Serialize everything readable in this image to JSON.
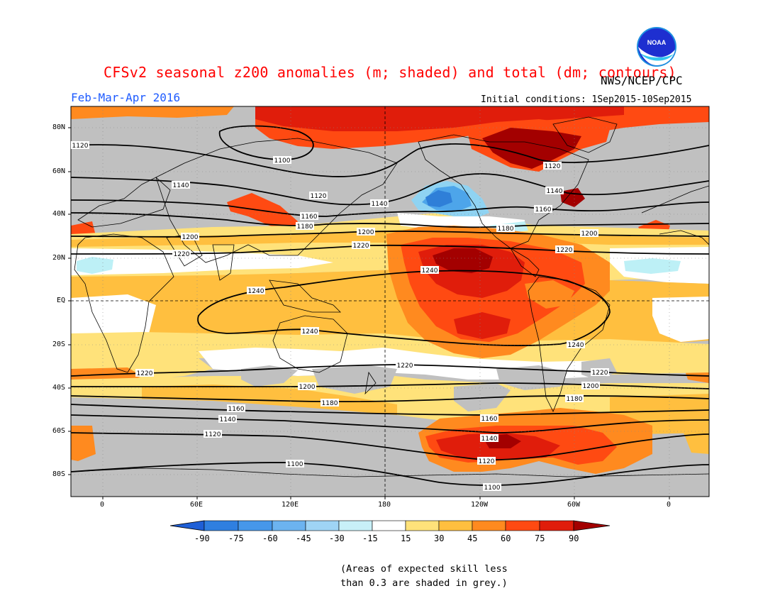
{
  "header": {
    "title": "CFSv2 seasonal z200 anomalies (m; shaded) and total (dm; contours)",
    "agency": "NWS/NCEP/CPC",
    "period": "Feb-Mar-Apr 2016",
    "initial_conditions": "Initial conditions: 1Sep2015-10Sep2015",
    "logo_text": "NOAA"
  },
  "map": {
    "lat_labels": [
      "80N",
      "60N",
      "40N",
      "20N",
      "EQ",
      "20S",
      "40S",
      "60S",
      "80S"
    ],
    "lon_labels": [
      "0",
      "60E",
      "120E",
      "180",
      "120W",
      "60W",
      "0"
    ],
    "contour_labels": [
      "1100",
      "1120",
      "1140",
      "1160",
      "1180",
      "1200",
      "1220",
      "1240"
    ],
    "colors": {
      "grey": "#c0c0c0",
      "neutral": "#ffffff",
      "pos15": "#ffe27a",
      "pos30": "#ffbf3f",
      "pos45": "#ff8a1f",
      "pos60": "#ff4a12",
      "pos75": "#e01d0b",
      "pos90": "#a30000",
      "neg15": "#bdf0f6",
      "neg30": "#8fd3f2",
      "neg45": "#4da5ea",
      "neg60": "#2f7fd8"
    }
  },
  "colorbar": {
    "ticks": [
      "-90",
      "-75",
      "-60",
      "-45",
      "-30",
      "-15",
      "15",
      "30",
      "45",
      "60",
      "75",
      "90"
    ],
    "colors": [
      "#1f5fd6",
      "#2f7fe0",
      "#4697ea",
      "#6cb3f0",
      "#9fd4f5",
      "#c8f0f8",
      "#ffffff",
      "#ffe27a",
      "#ffbf3f",
      "#ff8a1f",
      "#ff4a12",
      "#e01d0b",
      "#a30000"
    ]
  },
  "footnote": {
    "line1": "(Areas of expected skill less",
    "line2": "than 0.3 are shaded in grey.)"
  }
}
